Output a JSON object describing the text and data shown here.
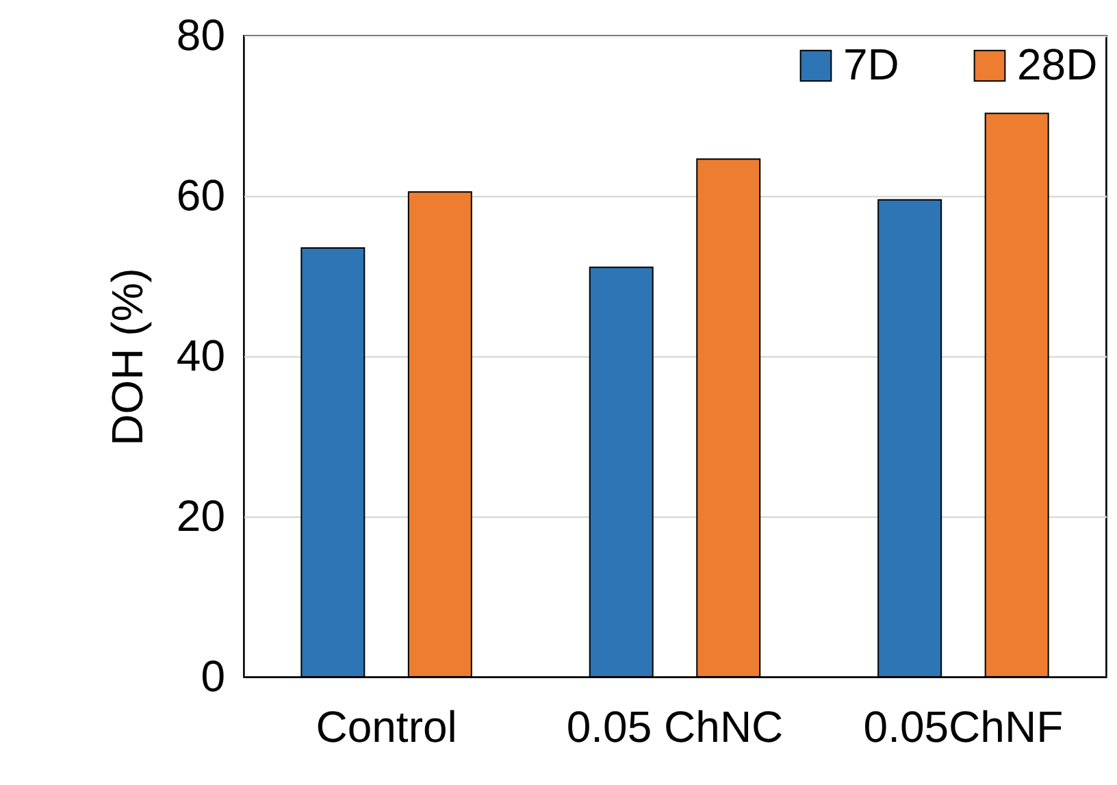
{
  "chart_data": {
    "type": "bar",
    "ylabel": "DOH (%)",
    "categories": [
      "Control",
      "0.05 ChNC",
      "0.05ChNF"
    ],
    "series": [
      {
        "name": "7D",
        "color": "#2e75b6",
        "values": [
          53.5,
          51.1,
          59.5
        ]
      },
      {
        "name": "28D",
        "color": "#ed7d31",
        "values": [
          60.5,
          64.6,
          70.3
        ]
      }
    ],
    "ylim": [
      0,
      80
    ],
    "yticks": [
      0,
      20,
      40,
      60,
      80
    ],
    "grid": "y",
    "legend": "top right"
  }
}
